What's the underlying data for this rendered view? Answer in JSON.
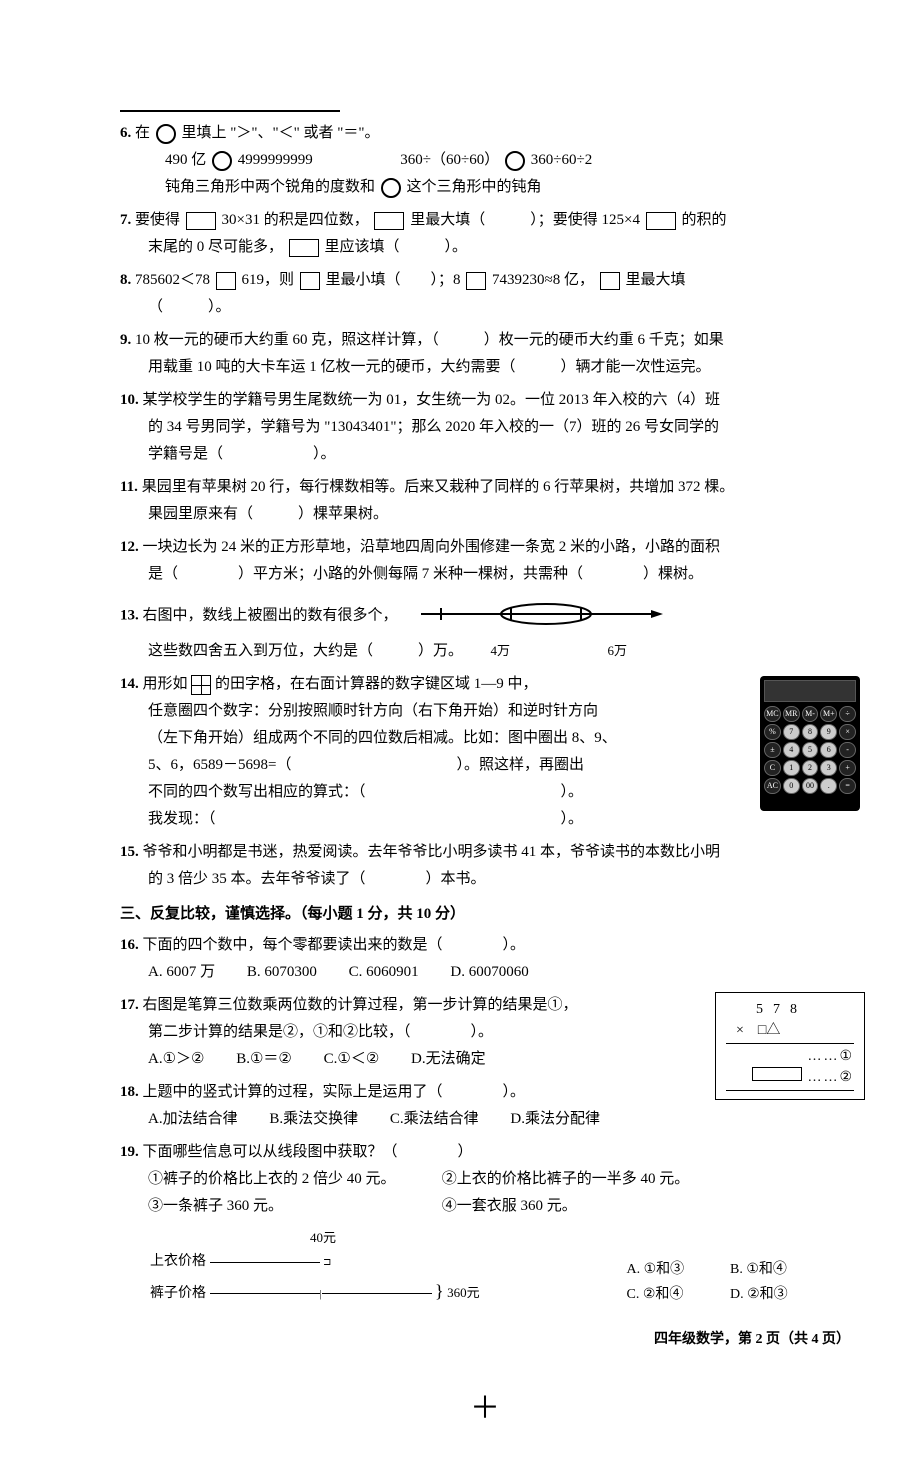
{
  "q6": {
    "num": "6.",
    "line1_a": "在",
    "line1_b": "里填上 \"＞\"、\"＜\" 或者 \"＝\"。",
    "line2_a": "490 亿",
    "line2_b": "4999999999",
    "line2_c": "360÷（60÷60）",
    "line2_d": "360÷60÷2",
    "line3_a": "钝角三角形中两个锐角的度数和",
    "line3_b": "这个三角形中的钝角"
  },
  "q7": {
    "num": "7.",
    "a": "要使得",
    "b": "30×31 的积是四位数，",
    "c": "里最大填（　　　）；要使得 125×4",
    "d": "的积的",
    "e": "末尾的 0 尽可能多，",
    "f": "里应该填（　　　）。"
  },
  "q8": {
    "num": "8.",
    "a": "785602＜78",
    "b": "619，则",
    "c": "里最小填（　　）；8",
    "d": "7439230≈8 亿，",
    "e": "里最大填",
    "f": "（　　　）。"
  },
  "q9": {
    "num": "9.",
    "a": "10 枚一元的硬币大约重 60 克，照这样计算，（　　　）枚一元的硬币大约重 6 千克；如果",
    "b": "用载重 10 吨的大卡车运 1 亿枚一元的硬币，大约需要（　　　）辆才能一次性运完。"
  },
  "q10": {
    "num": "10.",
    "a": "某学校学生的学籍号男生尾数统一为 01，女生统一为 02。一位 2013 年入校的六（4）班",
    "b": "的 34 号男同学，学籍号为 \"13043401\"；那么 2020 年入校的一（7）班的 26 号女同学的",
    "c": "学籍号是（　　　　　　）。"
  },
  "q11": {
    "num": "11.",
    "a": "果园里有苹果树 20 行，每行棵数相等。后来又栽种了同样的 6 行苹果树，共增加 372 棵。",
    "b": "果园里原来有（　　　）棵苹果树。"
  },
  "q12": {
    "num": "12.",
    "a": "一块边长为 24 米的正方形草地，沿草地四周向外围修建一条宽 2 米的小路，小路的面积",
    "b": "是（　　　　）平方米；小路的外侧每隔 7 米种一棵树，共需种（　　　　）棵树。"
  },
  "q13": {
    "num": "13.",
    "a": "右图中，数线上被圈出的数有很多个，",
    "b": "这些数四舍五入到万位，大约是（　　　）万。",
    "label_4": "4万",
    "label_6": "6万"
  },
  "q14": {
    "num": "14.",
    "a": "用形如",
    "b": "的田字格，在右面计算器的数字键区域 1—9 中，",
    "c": "任意圈四个数字：分别按照顺时针方向（右下角开始）和逆时针方向",
    "d": "（左下角开始）组成两个不同的四位数后相减。比如：图中圈出 8、9、",
    "e": "5、6，6589－5698=（　　　　　　　　　　　）。照这样，再圈出",
    "f": "不同的四个数写出相应的算式：（　　　　　　　　　　　　　）。",
    "g": "我发现：（　　　　　　　　　　　　　　　　　　　　　　　）。",
    "calc_keys": [
      [
        "MC",
        "MR",
        "M-",
        "M+",
        "÷"
      ],
      [
        "%",
        "7",
        "8",
        "9",
        "×"
      ],
      [
        "±",
        "4",
        "5",
        "6",
        "-"
      ],
      [
        "C",
        "1",
        "2",
        "3",
        "+"
      ],
      [
        "AC",
        "0",
        "00",
        ".",
        "="
      ]
    ]
  },
  "q15": {
    "num": "15.",
    "a": "爷爷和小明都是书迷，热爱阅读。去年爷爷比小明多读书 41 本，爷爷读书的本数比小明",
    "b": "的 3 倍少 35 本。去年爷爷读了（　　　　）本书。"
  },
  "section3": "三、反复比较，谨慎选择。（每小题 1 分，共 10 分）",
  "q16": {
    "num": "16.",
    "a": "下面的四个数中，每个零都要读出来的数是（　　　　）。",
    "optA": "A. 6007 万",
    "optB": "B. 6070300",
    "optC": "C. 6060901",
    "optD": "D. 60070060"
  },
  "q17": {
    "num": "17.",
    "a": "右图是笔算三位数乘两位数的计算过程，第一步计算的结果是①，",
    "b": "第二步计算的结果是②，①和②比较，（　　　　）。",
    "optA": "A.①＞②",
    "optB": "B.①＝②",
    "optC": "C.①＜②",
    "optD": "D.无法确定",
    "mult_top": "578",
    "mult_x": "×　□△",
    "mult_d1": "……①",
    "mult_d2": "……②"
  },
  "q18": {
    "num": "18.",
    "a": "上题中的竖式计算的过程，实际上是运用了（　　　　）。",
    "optA": "A.加法结合律",
    "optB": "B.乘法交换律",
    "optC": "C.乘法结合律",
    "optD": "D.乘法分配律"
  },
  "q19": {
    "num": "19.",
    "a": "下面哪些信息可以从线段图中获取？（　　　　）",
    "i1": "①裤子的价格比上衣的 2 倍少 40 元。",
    "i2": "②上衣的价格比裤子的一半多 40 元。",
    "i3": "③一条裤子 360 元。",
    "i4": "④一套衣服 360 元。",
    "optA": "A. ①和③",
    "optB": "B. ①和④",
    "optC": "C. ②和④",
    "optD": "D. ②和③",
    "diag_top": "上衣价格",
    "diag_bot": "裤子价格",
    "diag_40": "40元",
    "diag_360": "360元"
  },
  "footer": "四年级数学，第 2 页（共 4 页）"
}
